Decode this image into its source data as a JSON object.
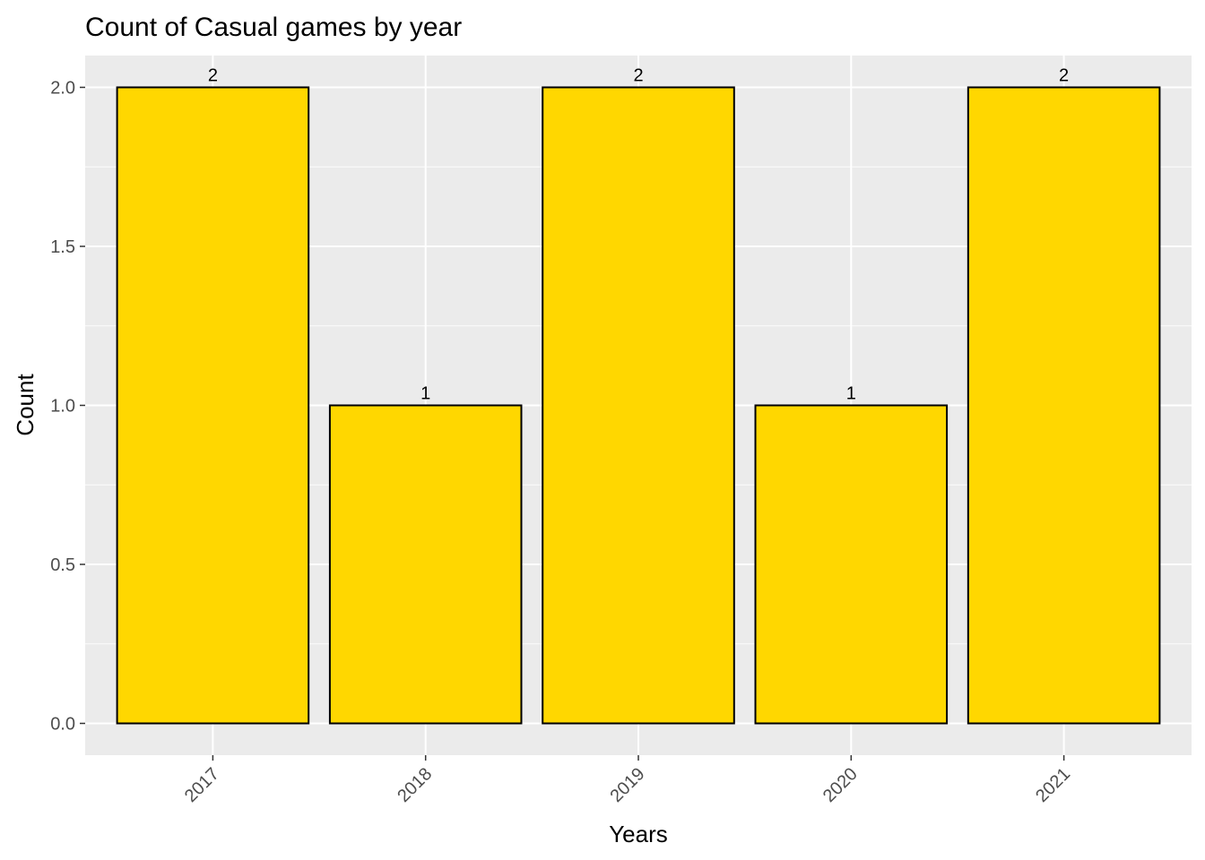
{
  "chart_data": {
    "type": "bar",
    "title": "Count of Casual games by year",
    "xlabel": "Years",
    "ylabel": "Count",
    "categories": [
      "2017",
      "2018",
      "2019",
      "2020",
      "2021"
    ],
    "values": [
      2,
      1,
      2,
      1,
      2
    ],
    "data_labels": [
      "2",
      "1",
      "2",
      "1",
      "2"
    ],
    "ylim": [
      -0.1,
      2.1
    ],
    "yticks": [
      0.0,
      0.5,
      1.0,
      1.5,
      2.0
    ],
    "ytick_labels": [
      "0.0",
      "0.5",
      "1.0",
      "1.5",
      "2.0"
    ],
    "grid": true,
    "colors": {
      "bar_fill": "#FFD700",
      "bar_outline": "#000000",
      "panel_background": "#EBEBEB",
      "gridline": "#FFFFFF"
    }
  }
}
